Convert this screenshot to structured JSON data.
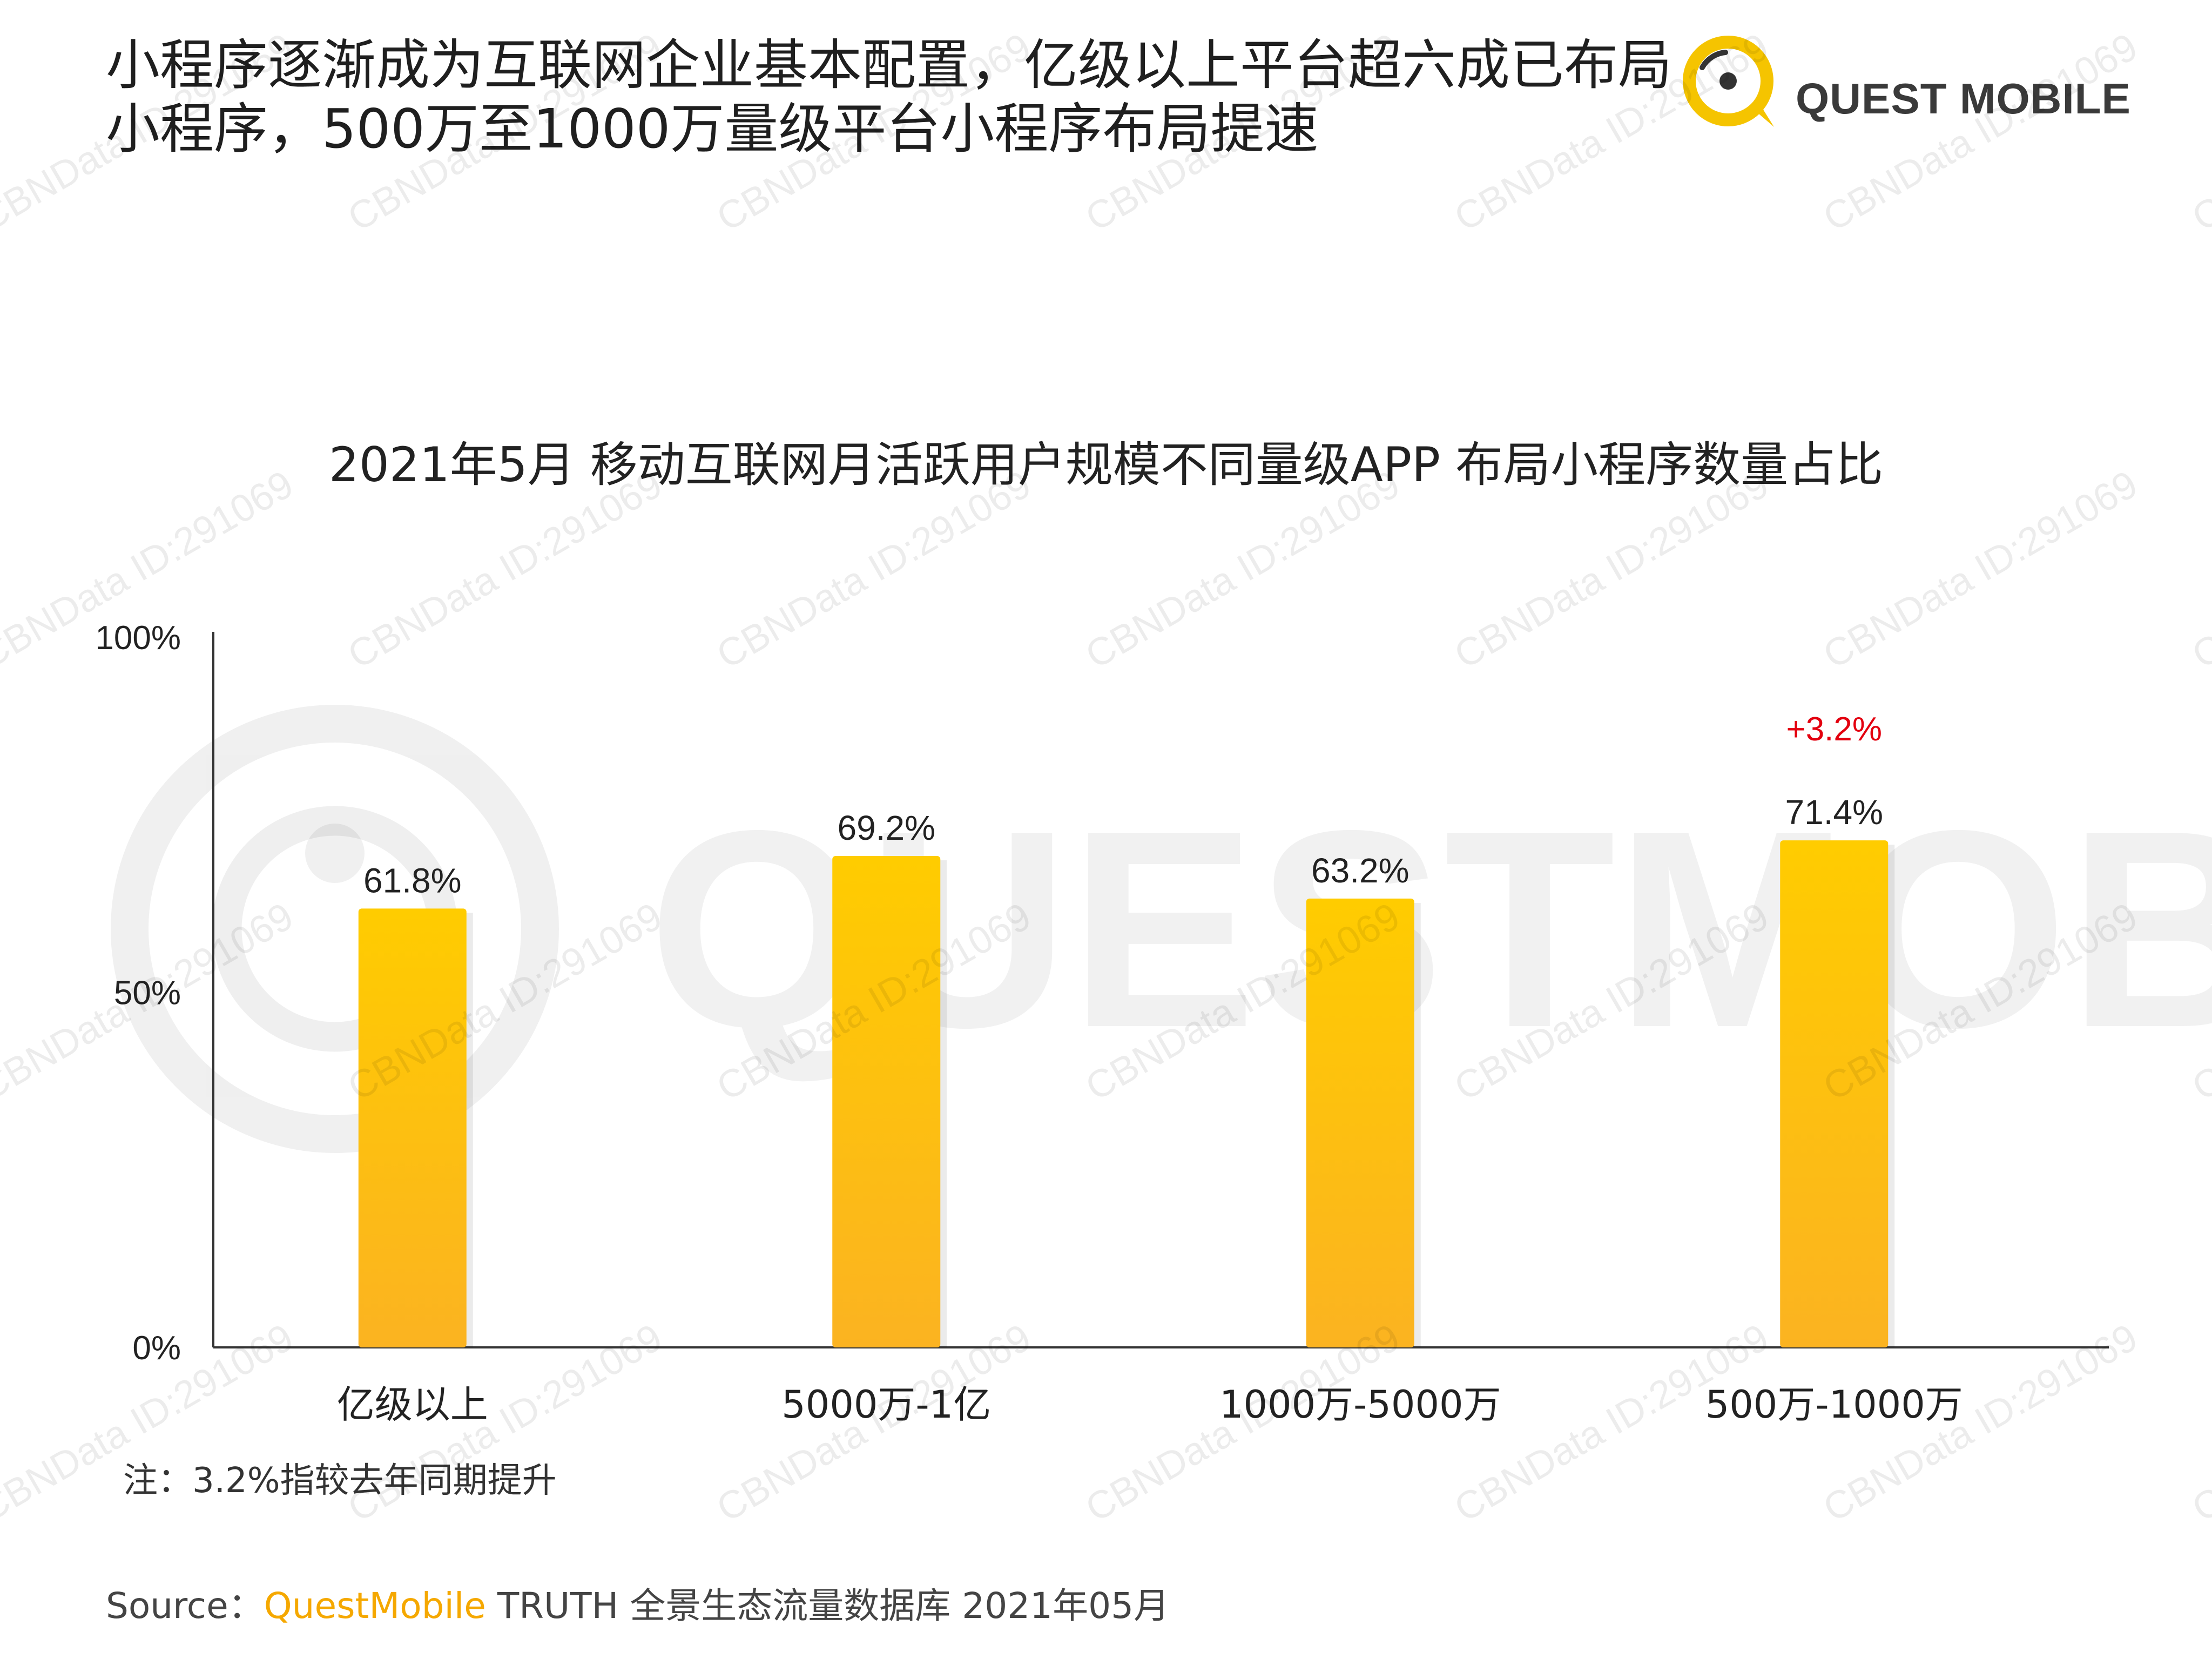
{
  "header": {
    "title": "小程序逐渐成为互联网企业基本配置，亿级以上平台超六成已布局小程序，500万至1000万量级平台小程序布局提速",
    "logo_text": "QUEST MOBILE"
  },
  "watermark": {
    "text": "CBNData ID:291069",
    "big_text": "QUESTMOBILE"
  },
  "chart_data": {
    "type": "bar",
    "title": "2021年5月 移动互联网月活跃用户规模不同量级APP 布局小程序数量占比",
    "categories": [
      "亿级以上",
      "5000万-1亿",
      "1000万-5000万",
      "500万-1000万"
    ],
    "values": [
      61.8,
      69.2,
      63.2,
      71.4
    ],
    "value_labels": [
      "61.8%",
      "69.2%",
      "63.2%",
      "71.4%"
    ],
    "ylim": [
      0,
      100
    ],
    "yticks": [
      0,
      50,
      100
    ],
    "ytick_labels": [
      "0%",
      "50%",
      "100%"
    ],
    "annotation": {
      "text": "+3.2%",
      "category_index": 3,
      "color": "#e3000f"
    },
    "bar_color_top": "#ffcc00",
    "bar_color_bottom": "#fbb321",
    "grid": false,
    "legend": "none"
  },
  "note": "注：3.2%指较去年同期提升",
  "source": {
    "prefix": "Source：",
    "brand": "QuestMobile",
    "suffix": " TRUTH 全景生态流量数据库 2021年05月"
  },
  "colors": {
    "accent": "#f5c400",
    "brand_text": "#f5a800",
    "annotation": "#e3000f"
  }
}
